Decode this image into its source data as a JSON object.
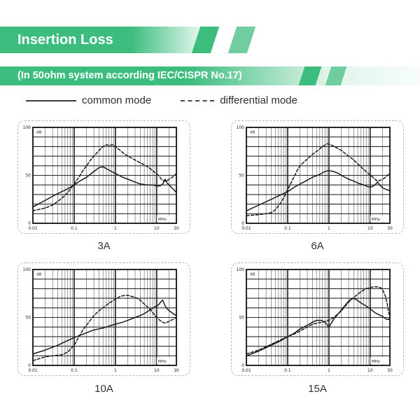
{
  "header": {
    "title": "Insertion Loss",
    "subtitle": "(In 50ohm system according IEC/CISPR No.17)",
    "accent_color": "#3cbd7e",
    "accent_color_light": "#6fcd9f"
  },
  "legend": {
    "solid_label": "common mode",
    "dashed_label": "differential mode"
  },
  "style_colors": {
    "grid": "#2a2a2a",
    "curve": "#1a1a1a",
    "card_border": "#b8b8b8",
    "caption_text": "#333333"
  },
  "chart_data": [
    {
      "type": "line",
      "title": "3A",
      "xlabel": "MHz",
      "ylabel": "dB",
      "xscale": "log",
      "xlim": [
        0.01,
        30
      ],
      "ylim": [
        0,
        100
      ],
      "xticks": [
        0.01,
        0.1,
        1,
        10,
        30
      ],
      "yticks": [
        0,
        50,
        100
      ],
      "grid": true,
      "series": [
        {
          "name": "common mode",
          "line": "solid",
          "points": [
            [
              0.01,
              17
            ],
            [
              0.02,
              24
            ],
            [
              0.04,
              31
            ],
            [
              0.07,
              36
            ],
            [
              0.1,
              40
            ],
            [
              0.15,
              45
            ],
            [
              0.2,
              48
            ],
            [
              0.3,
              54
            ],
            [
              0.4,
              58
            ],
            [
              0.5,
              59
            ],
            [
              0.6,
              57
            ],
            [
              0.8,
              54
            ],
            [
              1,
              52
            ],
            [
              1.5,
              48
            ],
            [
              2,
              46
            ],
            [
              3,
              43
            ],
            [
              4,
              41
            ],
            [
              6,
              40
            ],
            [
              8,
              40
            ],
            [
              10,
              39
            ],
            [
              12,
              39
            ],
            [
              14,
              41
            ],
            [
              16,
              46
            ],
            [
              18,
              42
            ],
            [
              22,
              38
            ],
            [
              26,
              35
            ],
            [
              30,
              32
            ]
          ]
        },
        {
          "name": "differential mode",
          "line": "dashed",
          "points": [
            [
              0.01,
              13
            ],
            [
              0.02,
              16
            ],
            [
              0.03,
              19
            ],
            [
              0.05,
              26
            ],
            [
              0.07,
              32
            ],
            [
              0.1,
              41
            ],
            [
              0.13,
              48
            ],
            [
              0.17,
              56
            ],
            [
              0.2,
              60
            ],
            [
              0.25,
              66
            ],
            [
              0.3,
              70
            ],
            [
              0.4,
              76
            ],
            [
              0.5,
              80
            ],
            [
              0.6,
              82
            ],
            [
              0.7,
              81
            ],
            [
              0.85,
              82
            ],
            [
              1,
              80
            ],
            [
              1.3,
              76
            ],
            [
              1.7,
              72
            ],
            [
              2,
              70
            ],
            [
              3,
              66
            ],
            [
              4,
              63
            ],
            [
              5,
              61
            ],
            [
              7,
              57
            ],
            [
              9,
              53
            ],
            [
              11,
              50
            ],
            [
              13,
              46
            ],
            [
              15,
              44
            ],
            [
              17,
              44
            ],
            [
              20,
              46
            ],
            [
              24,
              48
            ],
            [
              27,
              50
            ],
            [
              30,
              52
            ]
          ]
        }
      ]
    },
    {
      "type": "line",
      "title": "6A",
      "xlabel": "MHz",
      "ylabel": "dB",
      "xscale": "log",
      "xlim": [
        0.01,
        30
      ],
      "ylim": [
        0,
        100
      ],
      "xticks": [
        0.01,
        0.1,
        1,
        10,
        30
      ],
      "yticks": [
        0,
        50,
        100
      ],
      "grid": true,
      "series": [
        {
          "name": "common mode",
          "line": "solid",
          "points": [
            [
              0.01,
              13
            ],
            [
              0.02,
              19
            ],
            [
              0.04,
              25
            ],
            [
              0.07,
              30
            ],
            [
              0.1,
              33
            ],
            [
              0.15,
              38
            ],
            [
              0.2,
              41
            ],
            [
              0.3,
              45
            ],
            [
              0.4,
              48
            ],
            [
              0.6,
              51
            ],
            [
              0.8,
              54
            ],
            [
              1,
              55
            ],
            [
              1.3,
              54
            ],
            [
              1.7,
              52
            ],
            [
              2,
              50
            ],
            [
              3,
              46
            ],
            [
              4,
              44
            ],
            [
              5,
              42
            ],
            [
              7,
              40
            ],
            [
              9,
              38
            ],
            [
              11,
              38
            ],
            [
              13,
              40
            ],
            [
              15,
              43
            ],
            [
              17,
              40
            ],
            [
              20,
              37
            ],
            [
              25,
              35
            ],
            [
              30,
              34
            ]
          ]
        },
        {
          "name": "differential mode",
          "line": "dashed",
          "points": [
            [
              0.01,
              8
            ],
            [
              0.02,
              9
            ],
            [
              0.03,
              10
            ],
            [
              0.04,
              11
            ],
            [
              0.05,
              14
            ],
            [
              0.07,
              22
            ],
            [
              0.09,
              31
            ],
            [
              0.1,
              35
            ],
            [
              0.13,
              45
            ],
            [
              0.17,
              55
            ],
            [
              0.2,
              60
            ],
            [
              0.25,
              64
            ],
            [
              0.3,
              67
            ],
            [
              0.4,
              72
            ],
            [
              0.5,
              75
            ],
            [
              0.7,
              80
            ],
            [
              0.9,
              83
            ],
            [
              1.1,
              82
            ],
            [
              1.5,
              79
            ],
            [
              2,
              76
            ],
            [
              3,
              70
            ],
            [
              4,
              66
            ],
            [
              5,
              62
            ],
            [
              7,
              56
            ],
            [
              9,
              52
            ],
            [
              11,
              49
            ],
            [
              13,
              46
            ],
            [
              15,
              44
            ],
            [
              18,
              45
            ],
            [
              22,
              47
            ],
            [
              26,
              50
            ],
            [
              30,
              52
            ]
          ]
        }
      ]
    },
    {
      "type": "line",
      "title": "10A",
      "xlabel": "MHz",
      "ylabel": "dB",
      "xscale": "log",
      "xlim": [
        0.01,
        30
      ],
      "ylim": [
        0,
        100
      ],
      "xticks": [
        0.01,
        0.1,
        1,
        10,
        30
      ],
      "yticks": [
        0,
        50,
        100
      ],
      "grid": true,
      "series": [
        {
          "name": "common mode",
          "line": "solid",
          "points": [
            [
              0.01,
              12
            ],
            [
              0.02,
              16
            ],
            [
              0.04,
              21
            ],
            [
              0.07,
              26
            ],
            [
              0.1,
              29
            ],
            [
              0.15,
              32
            ],
            [
              0.2,
              34
            ],
            [
              0.3,
              37
            ],
            [
              0.5,
              39
            ],
            [
              0.7,
              41
            ],
            [
              1,
              43
            ],
            [
              1.5,
              45
            ],
            [
              2,
              47
            ],
            [
              3,
              50
            ],
            [
              4,
              52
            ],
            [
              5,
              54
            ],
            [
              7,
              58
            ],
            [
              9,
              61
            ],
            [
              11,
              63
            ],
            [
              13,
              67
            ],
            [
              14,
              68
            ],
            [
              16,
              62
            ],
            [
              18,
              59
            ],
            [
              20,
              57
            ],
            [
              25,
              54
            ],
            [
              30,
              52
            ]
          ]
        },
        {
          "name": "differential mode",
          "line": "dashed",
          "points": [
            [
              0.01,
              5
            ],
            [
              0.02,
              9
            ],
            [
              0.03,
              10
            ],
            [
              0.05,
              11
            ],
            [
              0.07,
              14
            ],
            [
              0.1,
              21
            ],
            [
              0.13,
              30
            ],
            [
              0.17,
              38
            ],
            [
              0.2,
              42
            ],
            [
              0.3,
              52
            ],
            [
              0.4,
              57
            ],
            [
              0.5,
              60
            ],
            [
              0.7,
              65
            ],
            [
              1,
              69
            ],
            [
              1.3,
              72
            ],
            [
              1.7,
              73
            ],
            [
              2,
              73
            ],
            [
              3,
              71
            ],
            [
              4,
              68
            ],
            [
              5,
              64
            ],
            [
              6,
              61
            ],
            [
              7,
              58
            ],
            [
              8,
              55
            ],
            [
              10,
              50
            ],
            [
              12,
              47
            ],
            [
              14,
              45
            ],
            [
              16,
              44
            ],
            [
              18,
              45
            ],
            [
              20,
              46
            ],
            [
              25,
              48
            ],
            [
              30,
              50
            ]
          ]
        }
      ]
    },
    {
      "type": "line",
      "title": "15A",
      "xlabel": "MHz",
      "ylabel": "dB",
      "xscale": "log",
      "xlim": [
        0.01,
        30
      ],
      "ylim": [
        0,
        100
      ],
      "xticks": [
        0.01,
        0.1,
        1,
        10,
        30
      ],
      "yticks": [
        0,
        50,
        100
      ],
      "grid": true,
      "series": [
        {
          "name": "common mode",
          "line": "solid",
          "points": [
            [
              0.01,
              10
            ],
            [
              0.02,
              15
            ],
            [
              0.04,
              21
            ],
            [
              0.07,
              26
            ],
            [
              0.1,
              30
            ],
            [
              0.15,
              34
            ],
            [
              0.2,
              38
            ],
            [
              0.3,
              42
            ],
            [
              0.4,
              45
            ],
            [
              0.5,
              47
            ],
            [
              0.65,
              47
            ],
            [
              0.8,
              45
            ],
            [
              1,
              40
            ],
            [
              1.3,
              48
            ],
            [
              1.7,
              54
            ],
            [
              2,
              58
            ],
            [
              2.5,
              63
            ],
            [
              3,
              67
            ],
            [
              3.7,
              70
            ],
            [
              4.5,
              69
            ],
            [
              6,
              65
            ],
            [
              8,
              62
            ],
            [
              10,
              59
            ],
            [
              13,
              55
            ],
            [
              16,
              53
            ],
            [
              20,
              51
            ],
            [
              25,
              48
            ],
            [
              28,
              48
            ],
            [
              30,
              50
            ]
          ]
        },
        {
          "name": "differential mode",
          "line": "dashed",
          "points": [
            [
              0.01,
              12
            ],
            [
              0.02,
              16
            ],
            [
              0.04,
              22
            ],
            [
              0.07,
              27
            ],
            [
              0.1,
              30
            ],
            [
              0.15,
              33
            ],
            [
              0.2,
              36
            ],
            [
              0.3,
              40
            ],
            [
              0.4,
              43
            ],
            [
              0.5,
              44
            ],
            [
              0.7,
              45
            ],
            [
              1,
              47
            ],
            [
              1.3,
              50
            ],
            [
              1.7,
              54
            ],
            [
              2,
              57
            ],
            [
              2.5,
              62
            ],
            [
              3,
              66
            ],
            [
              4,
              71
            ],
            [
              5,
              74
            ],
            [
              6,
              77
            ],
            [
              8,
              80
            ],
            [
              10,
              81
            ],
            [
              12,
              82
            ],
            [
              15,
              82
            ],
            [
              18,
              81
            ],
            [
              20,
              79
            ],
            [
              23,
              73
            ],
            [
              26,
              64
            ],
            [
              28,
              55
            ],
            [
              30,
              51
            ]
          ]
        }
      ]
    }
  ]
}
